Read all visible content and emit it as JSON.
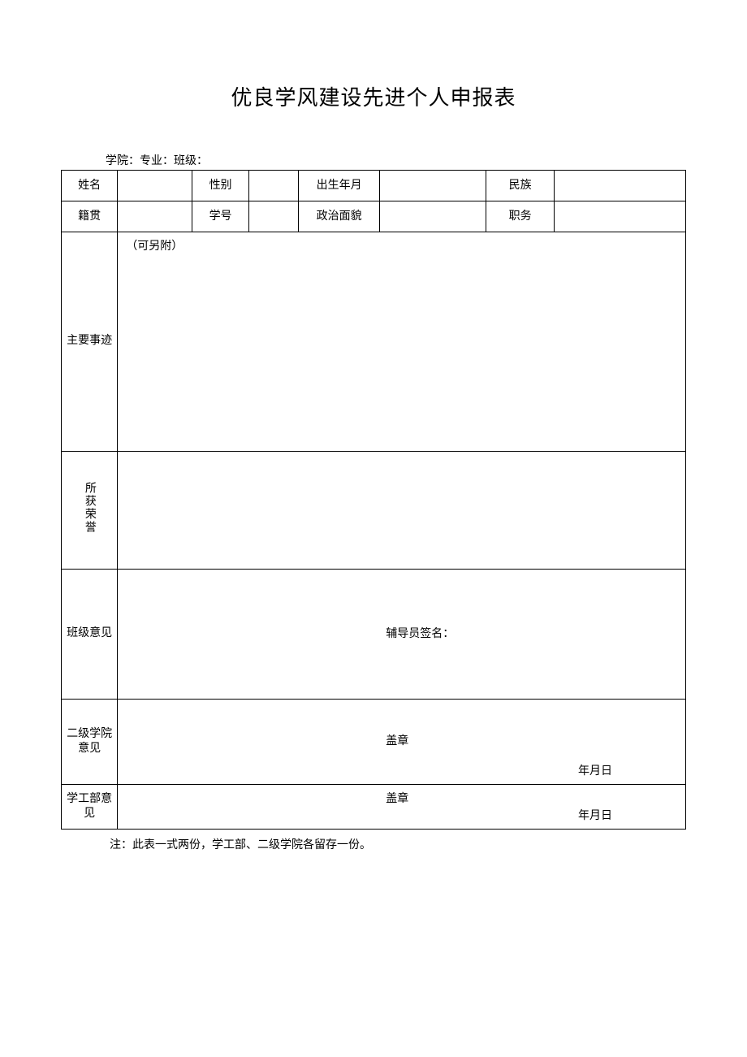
{
  "title": "优良学风建设先进个人申报表",
  "header": {
    "college": "学院：",
    "major": "专业：",
    "class": "班级："
  },
  "row1": {
    "name_label": "姓名",
    "gender_label": "性别",
    "birth_label": "出生年月",
    "ethnic_label": "民族"
  },
  "row2": {
    "origin_label": "籍贯",
    "studentno_label": "学号",
    "political_label": "政治面貌",
    "position_label": "职务"
  },
  "deeds": {
    "label": "主要事迹",
    "note": "（可另附）"
  },
  "honor": {
    "label": "所获荣誉"
  },
  "class_opinion": {
    "label": "班级意见",
    "signature": "辅导员签名："
  },
  "second_college": {
    "label": "二级学院意见",
    "stamp": "盖章",
    "date": "年月日"
  },
  "student_affairs": {
    "label": "学工部意见",
    "stamp": "盖章",
    "date": "年月日"
  },
  "footnote": "注：此表一式两份，学工部、二级学院各留存一份。"
}
